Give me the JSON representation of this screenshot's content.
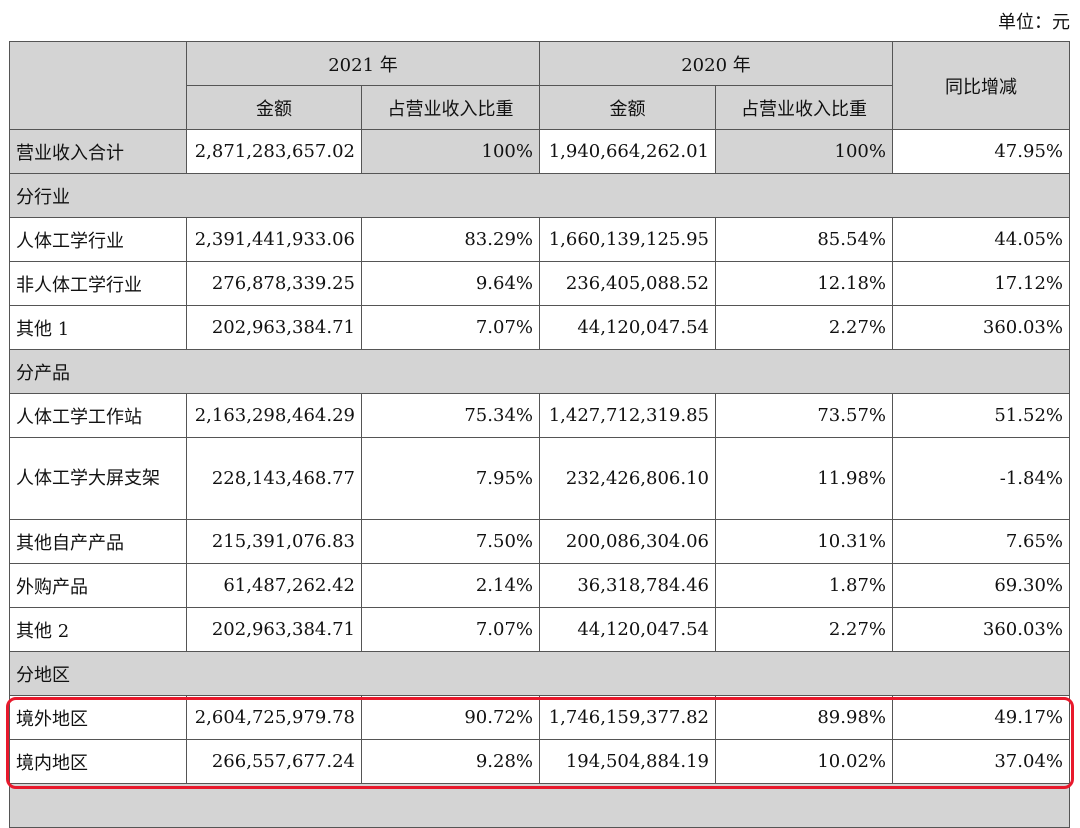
{
  "unit": "单位：元",
  "header": {
    "y2021": "2021 年",
    "y2020": "2020 年",
    "amount": "金额",
    "share": "占营业收入比重",
    "yoy": "同比增减"
  },
  "total": {
    "label": "营业收入合计",
    "a2021": "2,871,283,657.02",
    "s2021": "100%",
    "a2020": "1,940,664,262.01",
    "s2020": "100%",
    "yoy": "47.95%"
  },
  "sections": [
    {
      "title": "分行业",
      "rows": [
        {
          "label": "人体工学行业",
          "a2021": "2,391,441,933.06",
          "s2021": "83.29%",
          "a2020": "1,660,139,125.95",
          "s2020": "85.54%",
          "yoy": "44.05%"
        },
        {
          "label": "非人体工学行业",
          "a2021": "276,878,339.25",
          "s2021": "9.64%",
          "a2020": "236,405,088.52",
          "s2020": "12.18%",
          "yoy": "17.12%"
        },
        {
          "label": "其他 1",
          "a2021": "202,963,384.71",
          "s2021": "7.07%",
          "a2020": "44,120,047.54",
          "s2020": "2.27%",
          "yoy": "360.03%"
        }
      ]
    },
    {
      "title": "分产品",
      "rows": [
        {
          "label": "人体工学工作站",
          "a2021": "2,163,298,464.29",
          "s2021": "75.34%",
          "a2020": "1,427,712,319.85",
          "s2020": "73.57%",
          "yoy": "51.52%"
        },
        {
          "label": "人体工学大屏支架",
          "a2021": "228,143,468.77",
          "s2021": "7.95%",
          "a2020": "232,426,806.10",
          "s2020": "11.98%",
          "yoy": "-1.84%"
        },
        {
          "label": "其他自产产品",
          "a2021": "215,391,076.83",
          "s2021": "7.50%",
          "a2020": "200,086,304.06",
          "s2020": "10.31%",
          "yoy": "7.65%"
        },
        {
          "label": "外购产品",
          "a2021": "61,487,262.42",
          "s2021": "2.14%",
          "a2020": "36,318,784.46",
          "s2020": "1.87%",
          "yoy": "69.30%"
        },
        {
          "label": "其他 2",
          "a2021": "202,963,384.71",
          "s2021": "7.07%",
          "a2020": "44,120,047.54",
          "s2020": "2.27%",
          "yoy": "360.03%"
        }
      ]
    },
    {
      "title": "分地区",
      "rows": [
        {
          "label": "境外地区",
          "a2021": "2,604,725,979.78",
          "s2021": "90.72%",
          "a2020": "1,746,159,377.82",
          "s2020": "89.98%",
          "yoy": "49.17%"
        },
        {
          "label": "境内地区",
          "a2021": "266,557,677.24",
          "s2021": "9.28%",
          "a2020": "194,504,884.19",
          "s2020": "10.02%",
          "yoy": "37.04%"
        }
      ]
    }
  ],
  "highlight_color": "#e8192c"
}
